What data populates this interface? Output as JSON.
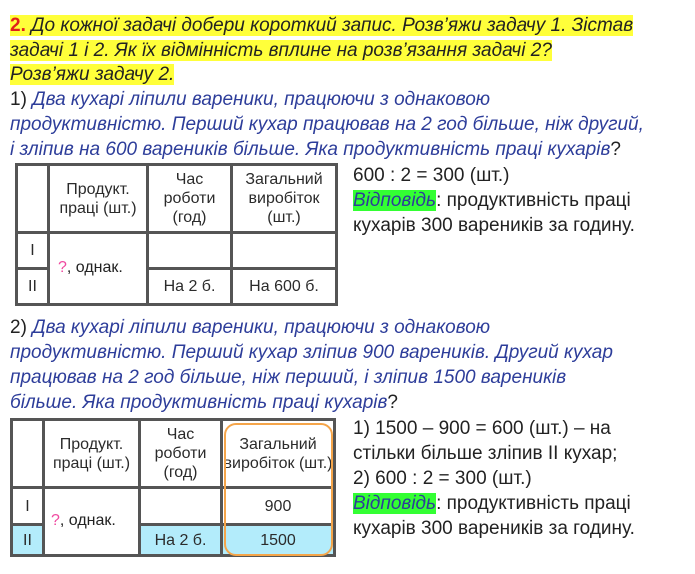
{
  "task": {
    "number": "2.",
    "lines": [
      "До кожної задачі добери короткий запис. Розв’яжи задачу 1. Зістав",
      "задачі 1 і 2. Як їх відмінність вплине на розв’язання задачі 2?",
      "Розв’яжи задачу 2."
    ]
  },
  "problem1": {
    "label": "1)",
    "lines": [
      "Два кухарі ліпили вареники, працюючи з однаковою",
      "продуктивністю. Перший кухар працював на 2 год більше, ніж другий,",
      "і зліпив на 600 вареників більше. Яка продуктивність праці кухарів"
    ],
    "end": "?",
    "table": {
      "headers": [
        "",
        "Продукт. праці (шт.)",
        "Час роботи (год)",
        "Загальний виробіток (шт.)"
      ],
      "rows": [
        {
          "label": "I",
          "time": "",
          "total": ""
        },
        {
          "label": "II",
          "time": "На 2 б.",
          "total": "На 600 б."
        }
      ],
      "merged_q": "?",
      "merged_text": ", однак."
    },
    "solution": [
      "600 : 2 = 300 (шт.)"
    ],
    "answer_label": "Відповідь",
    "answer_text": ": продуктивність праці",
    "answer_line2": "кухарів 300 вареників за годину."
  },
  "problem2": {
    "label": "2)",
    "lines": [
      "Два кухарі ліпили вареники, працюючи з однаковою",
      "продуктивністю. Перший кухар зліпив 900 вареників. Другий кухар",
      "працював на 2 год більше, ніж перший, і зліпив 1500 вареників",
      "більше. Яка продуктивність праці кухарів"
    ],
    "end": "?",
    "table": {
      "headers": [
        "",
        "Продукт. праці (шт.)",
        "Час роботи (год)",
        "Загальний виробіток (шт.)"
      ],
      "rows": [
        {
          "label": "I",
          "time": "",
          "total": "900"
        },
        {
          "label": "II",
          "time": "На 2 б.",
          "total": "1500"
        }
      ],
      "merged_q": "?",
      "merged_text": ", однак."
    },
    "solution": [
      "1) 1500 – 900 = 600 (шт.) – на",
      "стільки більше зліпив II кухар;",
      "2) 600 : 2 = 300 (шт.)"
    ],
    "answer_label": "Відповідь",
    "answer_text": ": продуктивність праці",
    "answer_line2": "кухарів 300 вареників за годину."
  },
  "colors": {
    "highlight": "#ffff3a",
    "number": "#e0201a",
    "problem_text": "#2d3d9a",
    "answer_highlight": "#33ff33",
    "row_highlight": "#b3ecfb",
    "frame": "#f5a54a"
  }
}
